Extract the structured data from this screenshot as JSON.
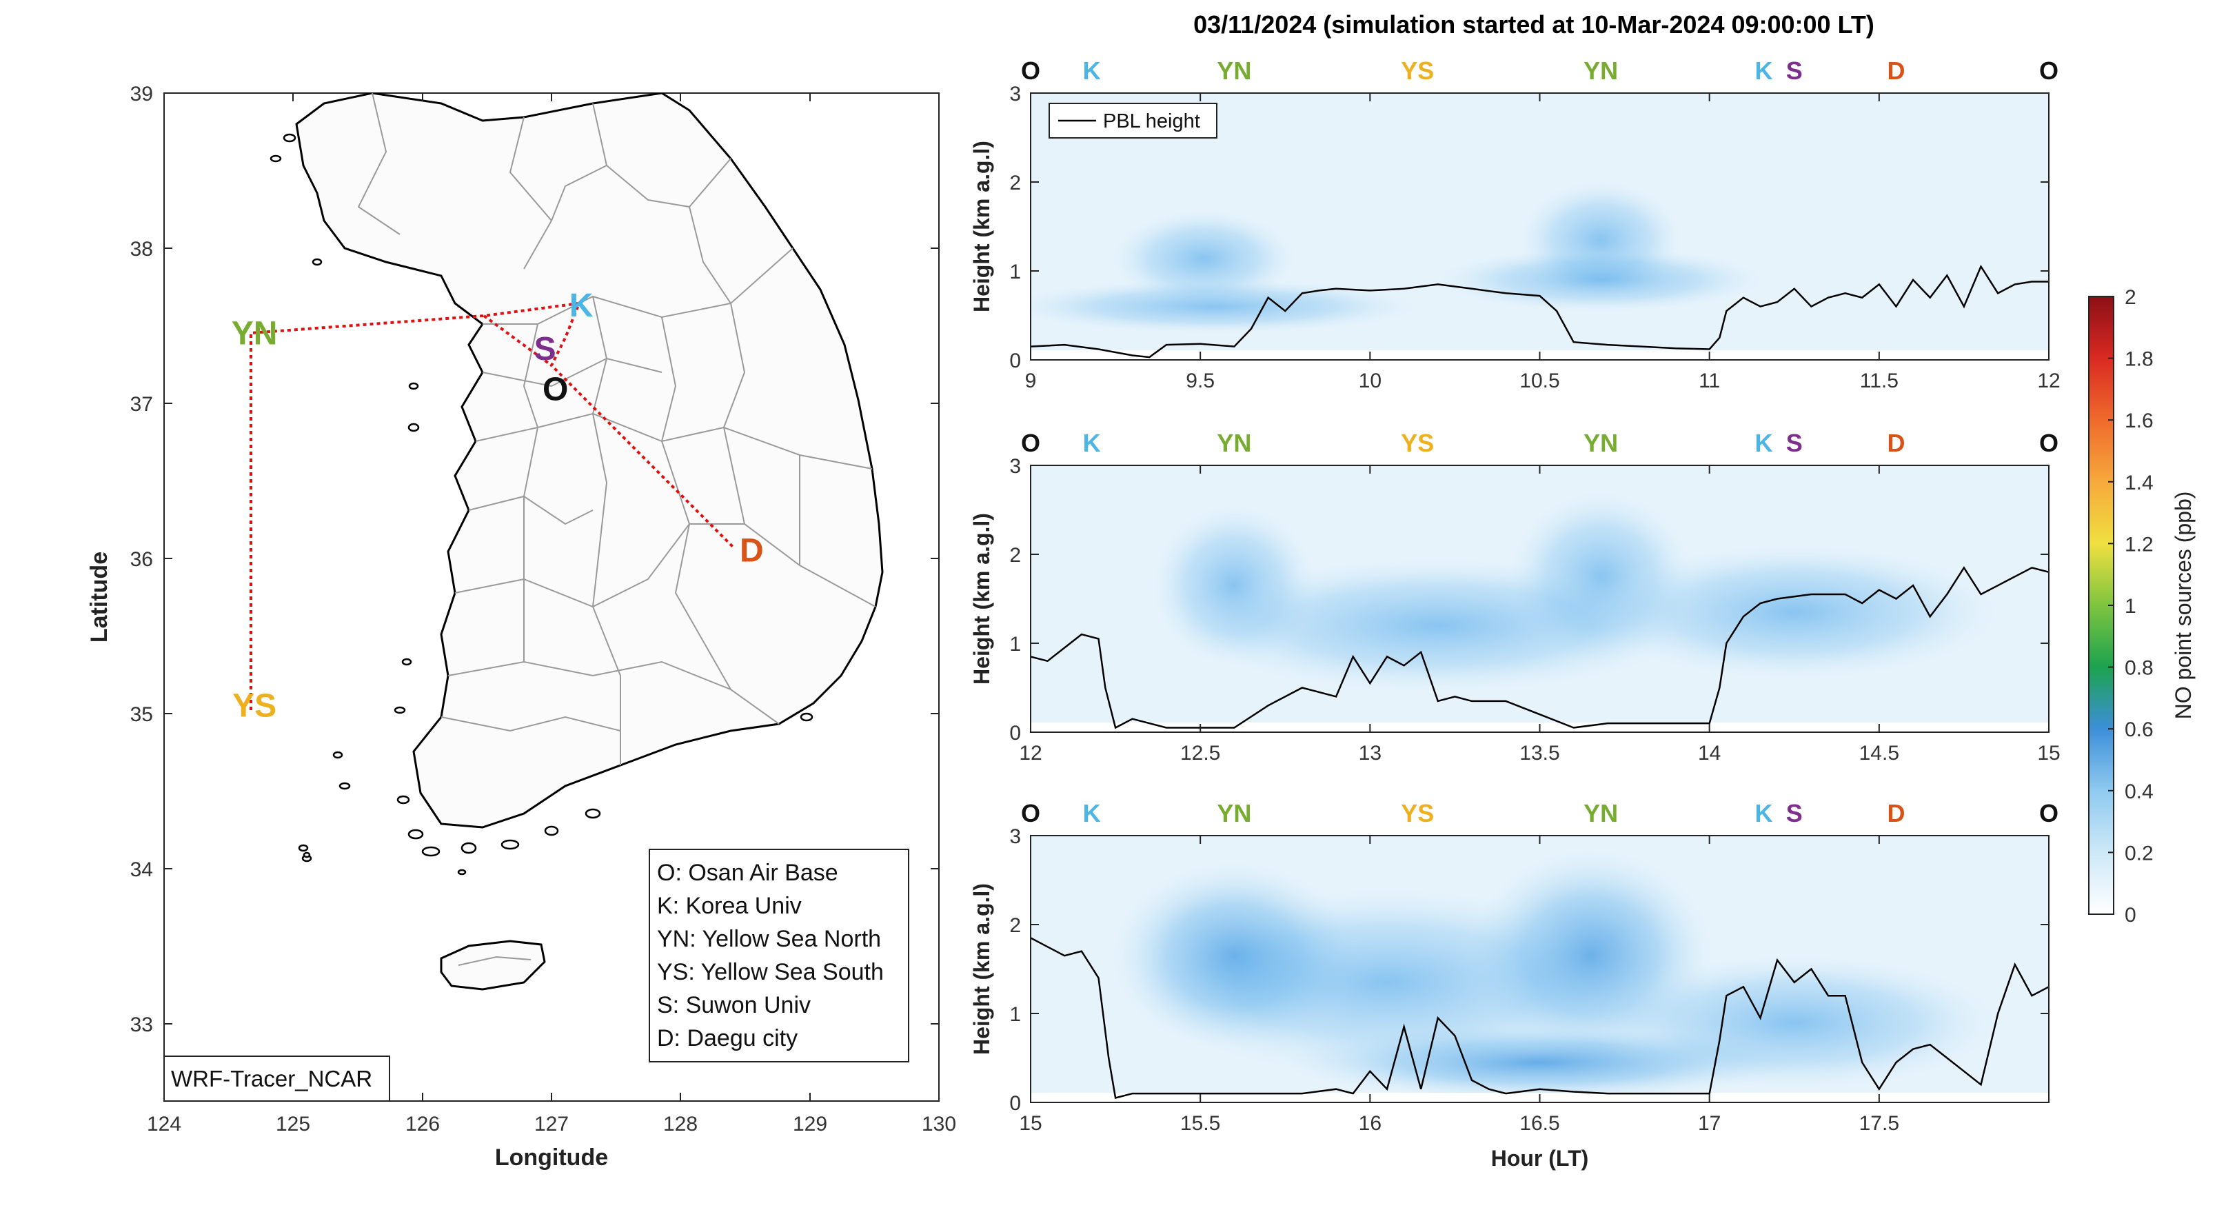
{
  "figure": {
    "title": "03/11/2024 (simulation started at 10-Mar-2024 09:00:00 LT)"
  },
  "colors": {
    "station_O": "#111111",
    "station_K": "#4bb5e6",
    "station_YN": "#77ac30",
    "station_YS": "#edb120",
    "station_S": "#7e2f8e",
    "station_D": "#d95319",
    "track": "#e01010",
    "pbl_line": "#000000"
  },
  "map": {
    "xlabel": "Longitude",
    "ylabel": "Latitude",
    "xlim": [
      124,
      130
    ],
    "ylim": [
      32.5,
      39
    ],
    "xticks": [
      "124",
      "125",
      "126",
      "127",
      "128",
      "129",
      "130"
    ],
    "yticks": [
      "33",
      "34",
      "35",
      "36",
      "37",
      "38",
      "39"
    ],
    "model_label": "WRF-Tracer_NCAR",
    "stations": [
      {
        "code": "K",
        "color": "#4bb5e6",
        "lon": 127.23,
        "lat": 37.63
      },
      {
        "code": "YN",
        "color": "#77ac30",
        "lon": 124.7,
        "lat": 37.45
      },
      {
        "code": "S",
        "color": "#7e2f8e",
        "lon": 126.95,
        "lat": 37.35
      },
      {
        "code": "O",
        "color": "#111111",
        "lon": 127.03,
        "lat": 37.09
      },
      {
        "code": "YS",
        "color": "#edb120",
        "lon": 124.7,
        "lat": 35.05
      },
      {
        "code": "D",
        "color": "#d95319",
        "lon": 128.55,
        "lat": 36.05
      }
    ],
    "legend": [
      "O: Osan Air Base",
      "K: Korea Univ",
      "YN: Yellow Sea North",
      "YS: Yellow Sea South",
      "S: Suwon Univ",
      "D: Daegu city"
    ]
  },
  "station_strip": [
    {
      "code": "O",
      "color": "#111111"
    },
    {
      "code": "K",
      "color": "#4bb5e6"
    },
    {
      "code": "YN",
      "color": "#77ac30"
    },
    {
      "code": "YS",
      "color": "#edb120"
    },
    {
      "code": "YN",
      "color": "#77ac30"
    },
    {
      "code": "K",
      "color": "#4bb5e6"
    },
    {
      "code": "S",
      "color": "#7e2f8e"
    },
    {
      "code": "D",
      "color": "#d95319"
    },
    {
      "code": "O",
      "color": "#111111"
    }
  ],
  "colorbar": {
    "label": "NO point sources (ppb)",
    "ticks": [
      "0",
      "0.2",
      "0.4",
      "0.6",
      "0.8",
      "1",
      "1.2",
      "1.4",
      "1.6",
      "1.8",
      "2"
    ],
    "range": [
      0,
      2
    ]
  },
  "chart_data": [
    {
      "type": "line",
      "ylabel": "Height (km a.g.l)",
      "xlabel": "",
      "xlim": [
        9,
        12
      ],
      "ylim": [
        0,
        3
      ],
      "xticks": [
        "9",
        "9.5",
        "10",
        "10.5",
        "11",
        "11.5",
        "12"
      ],
      "yticks": [
        "0",
        "1",
        "2",
        "3"
      ],
      "legend": "PBL height",
      "series": [
        {
          "name": "PBL height",
          "x": [
            9.0,
            9.1,
            9.2,
            9.3,
            9.35,
            9.4,
            9.5,
            9.6,
            9.65,
            9.7,
            9.75,
            9.8,
            9.85,
            9.9,
            10.0,
            10.1,
            10.2,
            10.3,
            10.4,
            10.5,
            10.55,
            10.6,
            10.7,
            10.8,
            10.9,
            11.0,
            11.03,
            11.05,
            11.1,
            11.15,
            11.2,
            11.25,
            11.3,
            11.35,
            11.4,
            11.45,
            11.5,
            11.55,
            11.6,
            11.65,
            11.7,
            11.75,
            11.8,
            11.85,
            11.9,
            11.95,
            12.0
          ],
          "y": [
            0.15,
            0.17,
            0.12,
            0.05,
            0.03,
            0.17,
            0.18,
            0.15,
            0.35,
            0.7,
            0.55,
            0.75,
            0.78,
            0.8,
            0.78,
            0.8,
            0.85,
            0.8,
            0.75,
            0.72,
            0.55,
            0.2,
            0.17,
            0.15,
            0.13,
            0.12,
            0.25,
            0.55,
            0.7,
            0.6,
            0.65,
            0.8,
            0.6,
            0.7,
            0.75,
            0.7,
            0.85,
            0.6,
            0.9,
            0.7,
            0.95,
            0.6,
            1.05,
            0.75,
            0.85,
            0.88,
            0.88
          ]
        }
      ]
    },
    {
      "type": "line",
      "ylabel": "Height (km a.g.l)",
      "xlabel": "",
      "xlim": [
        12,
        15
      ],
      "ylim": [
        0,
        3
      ],
      "xticks": [
        "12",
        "12.5",
        "13",
        "13.5",
        "14",
        "14.5",
        "15"
      ],
      "yticks": [
        "0",
        "1",
        "2",
        "3"
      ],
      "series": [
        {
          "name": "PBL height",
          "x": [
            12.0,
            12.05,
            12.1,
            12.15,
            12.2,
            12.22,
            12.25,
            12.3,
            12.4,
            12.5,
            12.6,
            12.7,
            12.8,
            12.9,
            12.95,
            13.0,
            13.05,
            13.1,
            13.15,
            13.2,
            13.25,
            13.3,
            13.4,
            13.5,
            13.6,
            13.7,
            13.8,
            13.9,
            13.97,
            14.0,
            14.03,
            14.05,
            14.1,
            14.15,
            14.2,
            14.3,
            14.4,
            14.45,
            14.5,
            14.55,
            14.6,
            14.65,
            14.7,
            14.75,
            14.8,
            14.85,
            14.9,
            14.95,
            15.0
          ],
          "y": [
            0.85,
            0.8,
            0.95,
            1.1,
            1.05,
            0.5,
            0.05,
            0.15,
            0.05,
            0.05,
            0.05,
            0.3,
            0.5,
            0.4,
            0.85,
            0.55,
            0.85,
            0.75,
            0.9,
            0.35,
            0.4,
            0.35,
            0.35,
            0.2,
            0.05,
            0.1,
            0.1,
            0.1,
            0.1,
            0.1,
            0.5,
            1.0,
            1.3,
            1.45,
            1.5,
            1.55,
            1.55,
            1.45,
            1.6,
            1.5,
            1.65,
            1.3,
            1.55,
            1.85,
            1.55,
            1.65,
            1.75,
            1.85,
            1.8
          ]
        }
      ]
    },
    {
      "type": "line",
      "ylabel": "Height (km a.g.l)",
      "xlabel": "Hour (LT)",
      "xlim": [
        15,
        18
      ],
      "ylim": [
        0,
        3
      ],
      "xticks": [
        "15",
        "15.5",
        "16",
        "16.5",
        "17",
        "17.5"
      ],
      "yticks": [
        "0",
        "1",
        "2",
        "3"
      ],
      "series": [
        {
          "name": "PBL height",
          "x": [
            15.0,
            15.05,
            15.1,
            15.15,
            15.2,
            15.23,
            15.25,
            15.3,
            15.5,
            15.7,
            15.8,
            15.9,
            15.95,
            16.0,
            16.05,
            16.1,
            16.15,
            16.2,
            16.25,
            16.3,
            16.35,
            16.4,
            16.5,
            16.6,
            16.7,
            16.8,
            16.9,
            16.95,
            17.0,
            17.03,
            17.05,
            17.1,
            17.15,
            17.2,
            17.25,
            17.3,
            17.35,
            17.4,
            17.45,
            17.5,
            17.55,
            17.6,
            17.65,
            17.7,
            17.75,
            17.8,
            17.85,
            17.9,
            17.95,
            18.0
          ],
          "y": [
            1.85,
            1.75,
            1.65,
            1.7,
            1.4,
            0.5,
            0.05,
            0.1,
            0.1,
            0.1,
            0.1,
            0.15,
            0.1,
            0.35,
            0.15,
            0.85,
            0.15,
            0.95,
            0.75,
            0.25,
            0.15,
            0.1,
            0.15,
            0.12,
            0.1,
            0.1,
            0.1,
            0.1,
            0.1,
            0.7,
            1.2,
            1.3,
            0.95,
            1.6,
            1.35,
            1.5,
            1.2,
            1.2,
            0.45,
            0.15,
            0.45,
            0.6,
            0.65,
            0.5,
            0.35,
            0.2,
            1.0,
            1.55,
            1.2,
            1.3
          ]
        }
      ]
    }
  ]
}
